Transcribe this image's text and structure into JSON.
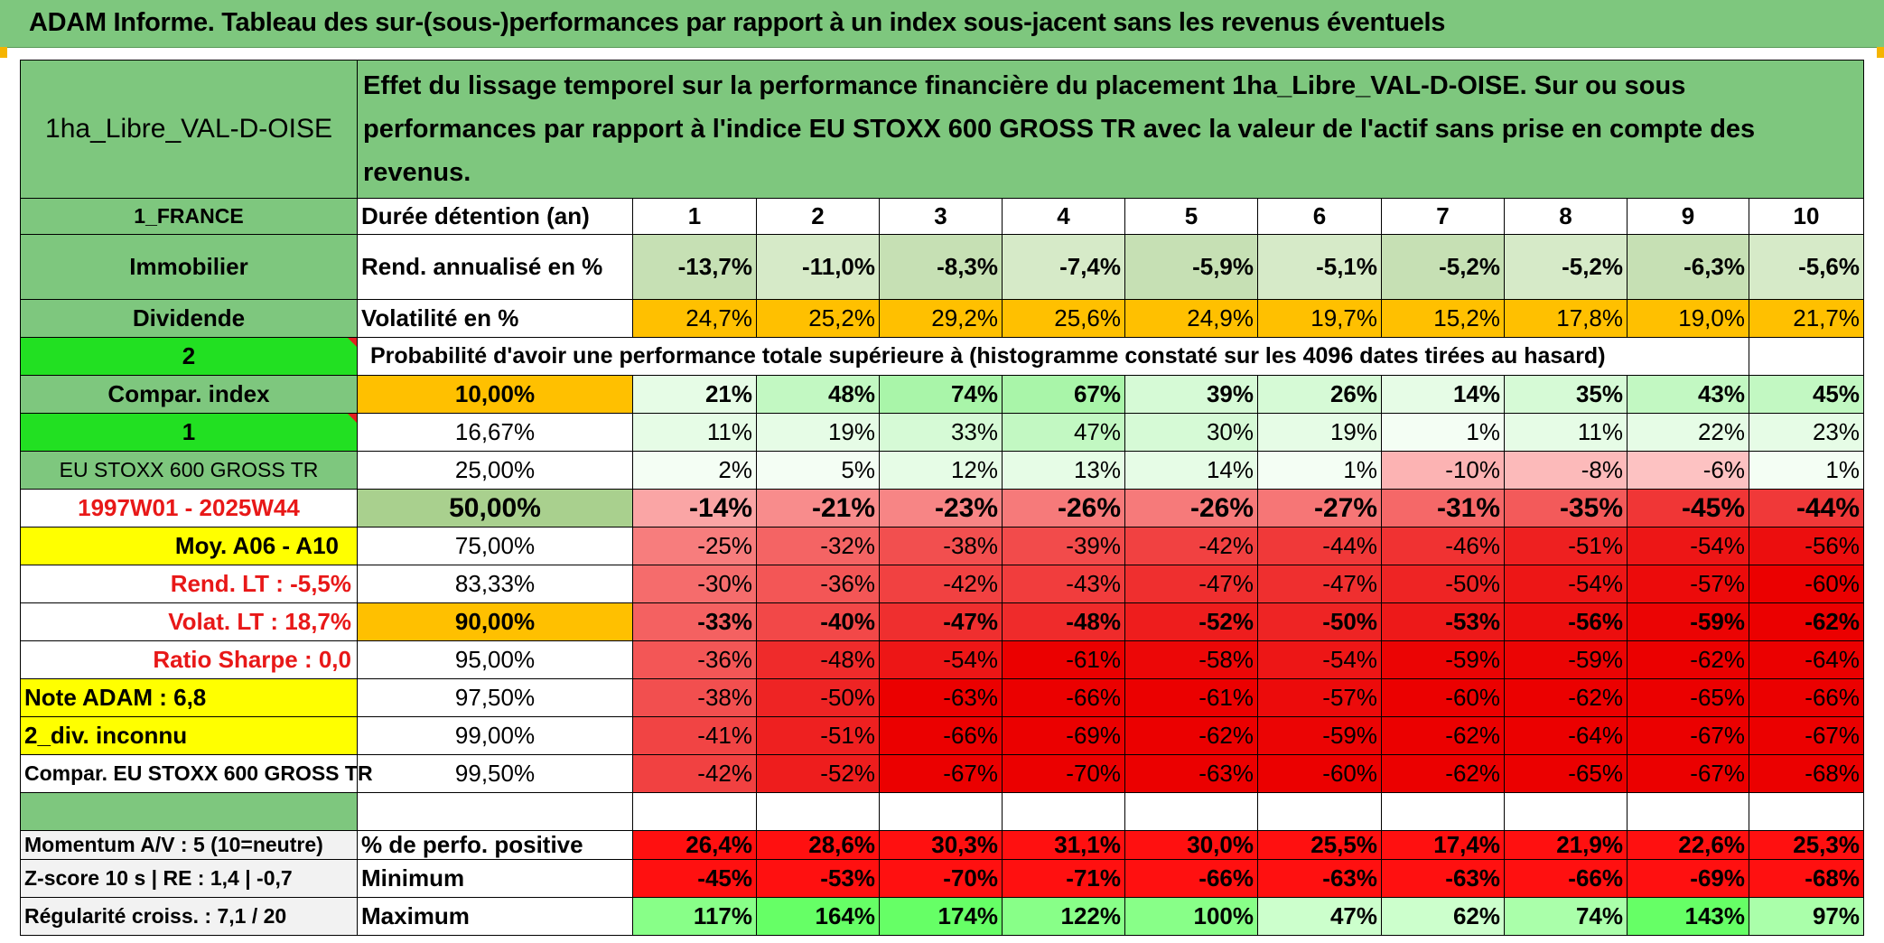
{
  "banner_title": "ADAM Informe. Tableau des sur-(sous-)performances par rapport à un index sous-jacent sans les revenus éventuels",
  "header": {
    "fund_name": "1ha_Libre_VAL-D-OISE",
    "description": "Effet du lissage temporel sur la performance financière du placement 1ha_Libre_VAL-D-OISE. Sur ou sous performances par rapport à l'indice EU STOXX 600 GROSS TR avec la valeur de l'actif sans prise en compte des revenus."
  },
  "sidebar": [
    "1_FRANCE",
    "Immobilier",
    "Dividende",
    "2",
    "Compar. index",
    "1",
    "EU STOXX 600 GROSS TR",
    "1997W01 - 2025W44",
    "Moy. A06 - A10",
    "Rend. LT :    -5,5%",
    "Volat. LT :    18,7%",
    "Ratio Sharpe :    0,0",
    "Note ADAM : 6,8",
    "2_div. inconnu",
    "Compar. EU STOXX 600 GROSS TR"
  ],
  "row_labels": {
    "duration": "Durée détention (an)",
    "return": "Rend. annualisé en %",
    "volatility": "Volatilité en %",
    "probability": "Probabilité d'avoir une performance totale supérieure à (histogramme constaté sur les 4096 dates tirées au hasard)"
  },
  "years": [
    "1",
    "2",
    "3",
    "4",
    "5",
    "6",
    "7",
    "8",
    "9",
    "10"
  ],
  "returns": [
    "-13,7%",
    "-11,0%",
    "-8,3%",
    "-7,4%",
    "-5,9%",
    "-5,1%",
    "-5,2%",
    "-5,2%",
    "-6,3%",
    "-5,6%"
  ],
  "volatility": [
    "24,7%",
    "25,2%",
    "29,2%",
    "25,6%",
    "24,9%",
    "19,7%",
    "15,2%",
    "17,8%",
    "19,0%",
    "21,7%"
  ],
  "quantiles": [
    {
      "p": "10,00%",
      "values": [
        "21%",
        "48%",
        "74%",
        "67%",
        "39%",
        "26%",
        "14%",
        "35%",
        "43%",
        "45%"
      ]
    },
    {
      "p": "16,67%",
      "values": [
        "11%",
        "19%",
        "33%",
        "47%",
        "30%",
        "19%",
        "1%",
        "11%",
        "22%",
        "23%"
      ]
    },
    {
      "p": "25,00%",
      "values": [
        "2%",
        "5%",
        "12%",
        "13%",
        "14%",
        "1%",
        "-10%",
        "-8%",
        "-6%",
        "1%"
      ]
    },
    {
      "p": "50,00%",
      "values": [
        "-14%",
        "-21%",
        "-23%",
        "-26%",
        "-26%",
        "-27%",
        "-31%",
        "-35%",
        "-45%",
        "-44%"
      ]
    },
    {
      "p": "75,00%",
      "values": [
        "-25%",
        "-32%",
        "-38%",
        "-39%",
        "-42%",
        "-44%",
        "-46%",
        "-51%",
        "-54%",
        "-56%"
      ]
    },
    {
      "p": "83,33%",
      "values": [
        "-30%",
        "-36%",
        "-42%",
        "-43%",
        "-47%",
        "-47%",
        "-50%",
        "-54%",
        "-57%",
        "-60%"
      ]
    },
    {
      "p": "90,00%",
      "values": [
        "-33%",
        "-40%",
        "-47%",
        "-48%",
        "-52%",
        "-50%",
        "-53%",
        "-56%",
        "-59%",
        "-62%"
      ]
    },
    {
      "p": "95,00%",
      "values": [
        "-36%",
        "-48%",
        "-54%",
        "-61%",
        "-58%",
        "-54%",
        "-59%",
        "-59%",
        "-62%",
        "-64%"
      ]
    },
    {
      "p": "97,50%",
      "values": [
        "-38%",
        "-50%",
        "-63%",
        "-66%",
        "-61%",
        "-57%",
        "-60%",
        "-62%",
        "-65%",
        "-66%"
      ]
    },
    {
      "p": "99,00%",
      "values": [
        "-41%",
        "-51%",
        "-66%",
        "-69%",
        "-62%",
        "-59%",
        "-62%",
        "-64%",
        "-67%",
        "-67%"
      ]
    },
    {
      "p": "99,50%",
      "values": [
        "-42%",
        "-52%",
        "-67%",
        "-70%",
        "-63%",
        "-60%",
        "-62%",
        "-65%",
        "-67%",
        "-68%"
      ]
    }
  ],
  "summary": [
    {
      "left": "Momentum A/V : 5 (10=neutre)",
      "label": "% de perfo. positive",
      "values": [
        "26,4%",
        "28,6%",
        "30,3%",
        "31,1%",
        "30,0%",
        "25,5%",
        "17,4%",
        "21,9%",
        "22,6%",
        "25,3%"
      ]
    },
    {
      "left": "Z-score 10 s | RE : 1,4 | -0,7",
      "label": "Minimum",
      "values": [
        "-45%",
        "-53%",
        "-70%",
        "-71%",
        "-66%",
        "-63%",
        "-63%",
        "-66%",
        "-69%",
        "-68%"
      ]
    },
    {
      "left": "Régularité croiss. : 7,1 / 20",
      "label": "Maximum",
      "values": [
        "117%",
        "164%",
        "174%",
        "122%",
        "100%",
        "47%",
        "62%",
        "74%",
        "143%",
        "97%"
      ]
    }
  ],
  "colors": {
    "label_green": "#7ec77e",
    "bright_green": "#22e022",
    "yellow": "#ffff00",
    "orange": "#ffc000",
    "red_text": "#e81818"
  }
}
